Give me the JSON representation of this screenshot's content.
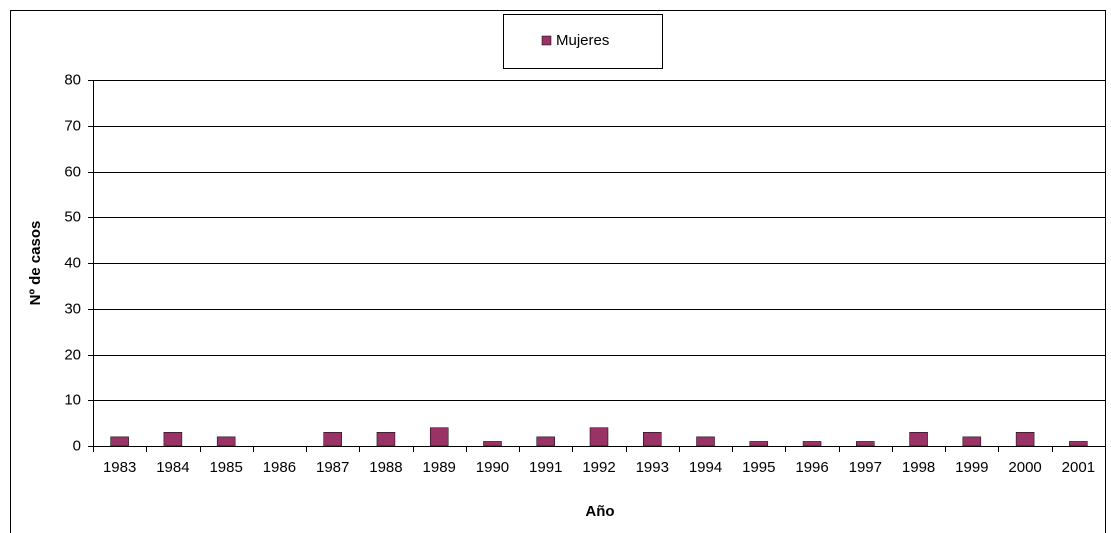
{
  "chart_data": {
    "type": "bar",
    "x_label": "Año",
    "y_label": "Nº de casos",
    "categories": [
      "1983",
      "1984",
      "1985",
      "1986",
      "1987",
      "1988",
      "1989",
      "1990",
      "1991",
      "1992",
      "1993",
      "1994",
      "1995",
      "1996",
      "1997",
      "1998",
      "1999",
      "2000",
      "2001"
    ],
    "series": [
      {
        "name": "Mujeres",
        "color": "#993366",
        "values": [
          2,
          3,
          2,
          0,
          3,
          3,
          4,
          1,
          2,
          4,
          3,
          2,
          1,
          1,
          1,
          3,
          2,
          3,
          1
        ]
      }
    ],
    "ylim": [
      0,
      80
    ],
    "yticks": [
      0,
      10,
      20,
      30,
      40,
      50,
      60,
      70,
      80
    ],
    "grid": true,
    "legend": "top"
  }
}
